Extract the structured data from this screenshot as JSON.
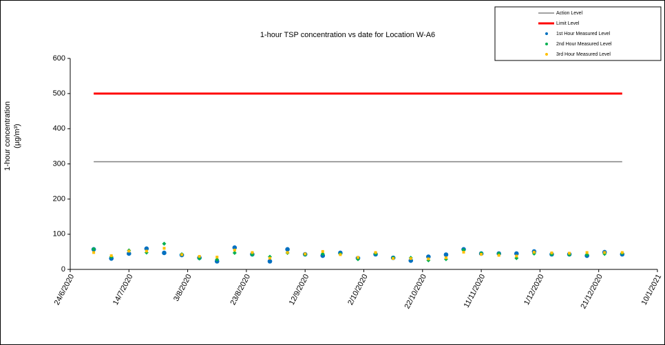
{
  "chart_data": {
    "type": "scatter",
    "title": "1-hour TSP concentration vs date for Location  W-A6",
    "y_label": [
      "1-hour concentration",
      "(µg/m³)"
    ],
    "x": [
      "2020-07-02",
      "2020-07-08",
      "2020-07-14",
      "2020-07-20",
      "2020-07-26",
      "2020-08-01",
      "2020-08-07",
      "2020-08-13",
      "2020-08-19",
      "2020-08-25",
      "2020-08-31",
      "2020-09-06",
      "2020-09-12",
      "2020-09-18",
      "2020-09-24",
      "2020-09-30",
      "2020-10-06",
      "2020-10-12",
      "2020-10-18",
      "2020-10-24",
      "2020-10-30",
      "2020-11-05",
      "2020-11-11",
      "2020-11-17",
      "2020-11-23",
      "2020-11-29",
      "2020-12-05",
      "2020-12-11",
      "2020-12-17",
      "2020-12-23",
      "2020-12-29"
    ],
    "series": [
      {
        "name": "Action Level",
        "kind": "line",
        "color": "#808080",
        "values": [
          306,
          306,
          306,
          306,
          306,
          306,
          306,
          306,
          306,
          306,
          306,
          306,
          306,
          306,
          306,
          306,
          306,
          306,
          306,
          306,
          306,
          306,
          306,
          306,
          306,
          306,
          306,
          306,
          306,
          306,
          306
        ]
      },
      {
        "name": "Limit Level",
        "kind": "line",
        "color": "#ff0000",
        "values": [
          500,
          500,
          500,
          500,
          500,
          500,
          500,
          500,
          500,
          500,
          500,
          500,
          500,
          500,
          500,
          500,
          500,
          500,
          500,
          500,
          500,
          500,
          500,
          500,
          500,
          500,
          500,
          500,
          500,
          500,
          500
        ]
      },
      {
        "name": "1st Hour Measured Level",
        "kind": "marker",
        "color": "#0070c0",
        "values": [
          57,
          31,
          45,
          59,
          47,
          41,
          33,
          23,
          62,
          43,
          23,
          57,
          43,
          39,
          47,
          32,
          43,
          33,
          25,
          36,
          42,
          57,
          45,
          45,
          45,
          51,
          43,
          43,
          39,
          49,
          43
        ]
      },
      {
        "name": "2nd Hour Measured Level",
        "kind": "marker",
        "color": "#00b050",
        "values": [
          58,
          36,
          54,
          48,
          73,
          43,
          31,
          28,
          47,
          42,
          36,
          47,
          42,
          44,
          44,
          29,
          45,
          33,
          33,
          26,
          29,
          55,
          46,
          45,
          32,
          45,
          43,
          42,
          42,
          44,
          46
        ]
      },
      {
        "name": "3rd Hour Measured Level",
        "kind": "marker",
        "color": "#ffc000",
        "values": [
          48,
          39,
          52,
          52,
          60,
          42,
          37,
          35,
          55,
          48,
          32,
          48,
          44,
          51,
          42,
          34,
          48,
          31,
          31,
          30,
          33,
          49,
          43,
          40,
          38,
          49,
          47,
          46,
          48,
          48,
          48
        ]
      }
    ],
    "xlim": [
      "2020-06-24",
      "2021-01-10"
    ],
    "xticks": [
      {
        "value": "2020-06-24",
        "label": "24/6/2020"
      },
      {
        "value": "2020-07-14",
        "label": "14/7/2020"
      },
      {
        "value": "2020-08-03",
        "label": "3/8/2020"
      },
      {
        "value": "2020-08-23",
        "label": "23/8/2020"
      },
      {
        "value": "2020-09-12",
        "label": "12/9/2020"
      },
      {
        "value": "2020-10-02",
        "label": "2/10/2020"
      },
      {
        "value": "2020-10-22",
        "label": "22/10/2020"
      },
      {
        "value": "2020-11-11",
        "label": "11/11/2020"
      },
      {
        "value": "2020-12-01",
        "label": "1/12/2020"
      },
      {
        "value": "2020-12-21",
        "label": "21/12/2020"
      },
      {
        "value": "2021-01-10",
        "label": "10/1/2021"
      }
    ],
    "ylim": [
      0,
      600
    ],
    "yticks": [
      0,
      100,
      200,
      300,
      400,
      500,
      600
    ],
    "legend": "top-right"
  }
}
